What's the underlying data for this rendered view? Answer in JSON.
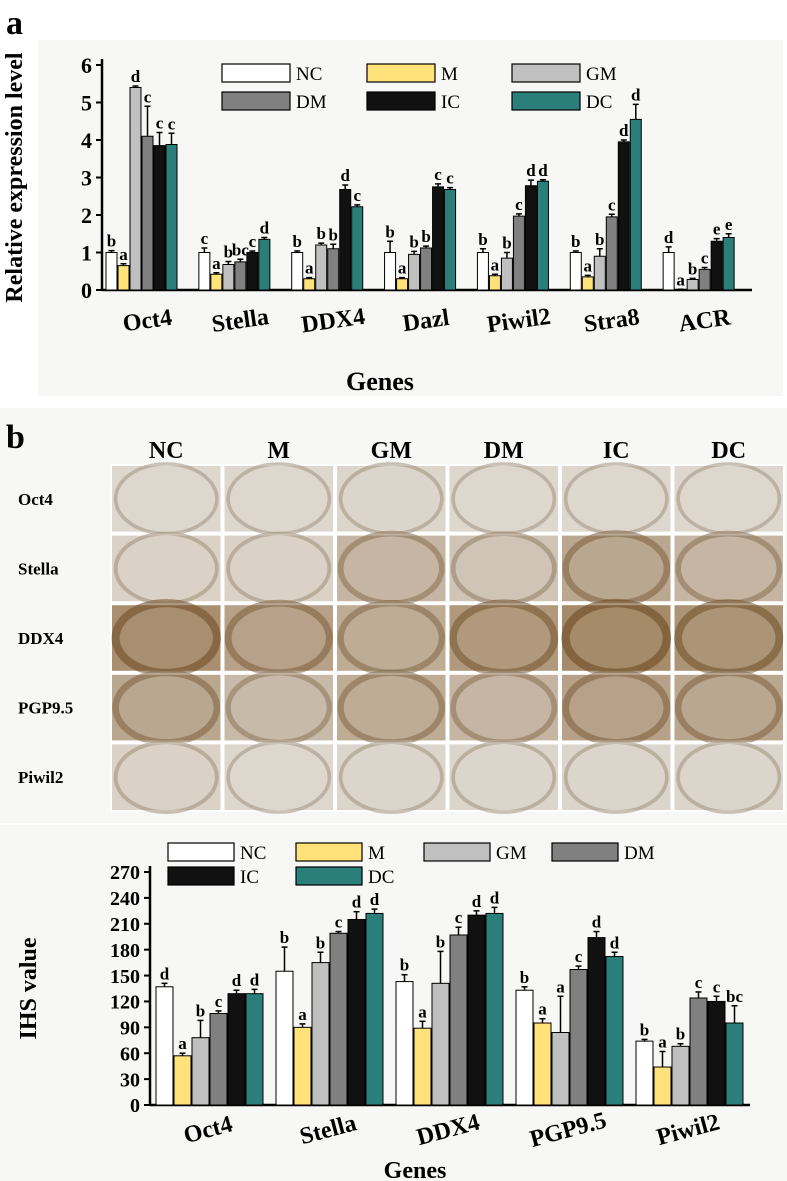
{
  "panel_a": {
    "panel_label": "a",
    "chart_data": {
      "type": "bar",
      "title": "",
      "xlabel": "Genes",
      "ylabel": "Relative expression level",
      "ylim": [
        0,
        6
      ],
      "yticks": [
        "0",
        "1",
        "2",
        "3",
        "4",
        "5",
        "6"
      ],
      "categories": [
        "Oct4",
        "Stella",
        "DDX4",
        "Dazl",
        "Piwil2",
        "Stra8",
        "ACR"
      ],
      "legend_position": "top-center",
      "series": [
        {
          "name": "NC",
          "color": "#ffffff",
          "values": [
            1.0,
            1.0,
            1.0,
            1.0,
            1.0,
            1.0,
            1.0
          ],
          "errors": [
            0.05,
            0.12,
            0.04,
            0.3,
            0.1,
            0.04,
            0.15
          ],
          "letters": [
            "b",
            "c",
            "b",
            "b",
            "b",
            "b",
            "d"
          ]
        },
        {
          "name": "M",
          "color": "#ffe37a",
          "values": [
            0.65,
            0.42,
            0.3,
            0.3,
            0.38,
            0.35,
            0.0
          ],
          "errors": [
            0.05,
            0.04,
            0.03,
            0.03,
            0.04,
            0.04,
            0.02
          ],
          "letters": [
            "a",
            "a",
            "a",
            "a",
            "a",
            "a",
            "a"
          ]
        },
        {
          "name": "GM",
          "color": "#c0c0c0",
          "values": [
            5.4,
            0.68,
            1.2,
            0.95,
            0.85,
            0.9,
            0.28
          ],
          "errors": [
            0.04,
            0.08,
            0.05,
            0.08,
            0.15,
            0.2,
            0.03
          ],
          "letters": [
            "d",
            "b",
            "b",
            "b",
            "b",
            "b",
            "b"
          ]
        },
        {
          "name": "DM",
          "color": "#808080",
          "values": [
            4.1,
            0.75,
            1.1,
            1.12,
            1.97,
            1.95,
            0.55
          ],
          "errors": [
            0.8,
            0.07,
            0.12,
            0.05,
            0.06,
            0.07,
            0.05
          ],
          "letters": [
            "c",
            "bc",
            "b",
            "b",
            "c",
            "c",
            "c"
          ]
        },
        {
          "name": "IC",
          "color": "#111111",
          "values": [
            3.85,
            1.0,
            2.68,
            2.75,
            2.78,
            3.95,
            1.3
          ],
          "errors": [
            0.35,
            0.04,
            0.12,
            0.08,
            0.15,
            0.05,
            0.07
          ],
          "letters": [
            "c",
            "c",
            "d",
            "c",
            "d",
            "d",
            "e"
          ]
        },
        {
          "name": "DC",
          "color": "#2a7f7a",
          "values": [
            3.88,
            1.35,
            2.22,
            2.68,
            2.9,
            4.55,
            1.4
          ],
          "errors": [
            0.3,
            0.05,
            0.05,
            0.05,
            0.04,
            0.4,
            0.1
          ],
          "letters": [
            "c",
            "d",
            "c",
            "c",
            "d",
            "d",
            "e"
          ]
        }
      ]
    }
  },
  "panel_b": {
    "panel_label": "b",
    "grid": {
      "columns": [
        "NC",
        "M",
        "GM",
        "DM",
        "IC",
        "DC"
      ],
      "rows": [
        "Oct4",
        "Stella",
        "DDX4",
        "PGP9.5",
        "Piwil2"
      ],
      "intensity": [
        [
          0.1,
          0.1,
          0.12,
          0.1,
          0.1,
          0.1
        ],
        [
          0.15,
          0.15,
          0.45,
          0.3,
          0.6,
          0.45
        ],
        [
          0.85,
          0.65,
          0.55,
          0.75,
          0.9,
          0.8
        ],
        [
          0.6,
          0.4,
          0.55,
          0.45,
          0.65,
          0.6
        ],
        [
          0.15,
          0.1,
          0.12,
          0.12,
          0.12,
          0.12
        ]
      ]
    },
    "chart_data": {
      "type": "bar",
      "title": "",
      "xlabel": "Genes",
      "ylabel": "IHS value",
      "ylim": [
        0,
        270
      ],
      "yticks": [
        "0",
        "30",
        "60",
        "90",
        "120",
        "150",
        "180",
        "210",
        "240",
        "270"
      ],
      "categories": [
        "Oct4",
        "Stella",
        "DDX4",
        "PGP9.5",
        "Piwil2"
      ],
      "legend_position": "top-center",
      "series": [
        {
          "name": "NC",
          "color": "#ffffff",
          "values": [
            137,
            155,
            143,
            133,
            74
          ],
          "errors": [
            4,
            28,
            8,
            4,
            2
          ],
          "letters": [
            "d",
            "b",
            "b",
            "b",
            "b"
          ]
        },
        {
          "name": "M",
          "color": "#ffe37a",
          "values": [
            57,
            90,
            89,
            95,
            44
          ],
          "errors": [
            3,
            4,
            8,
            5,
            18
          ],
          "letters": [
            "a",
            "a",
            "a",
            "a",
            "a"
          ]
        },
        {
          "name": "GM",
          "color": "#c0c0c0",
          "values": [
            78,
            165,
            141,
            84,
            68
          ],
          "errors": [
            20,
            12,
            37,
            42,
            3
          ],
          "letters": [
            "b",
            "b",
            "b",
            "a",
            "b"
          ]
        },
        {
          "name": "DM",
          "color": "#808080",
          "values": [
            106,
            199,
            197,
            157,
            124
          ],
          "errors": [
            3,
            2,
            9,
            4,
            7
          ],
          "letters": [
            "c",
            "c",
            "c",
            "c",
            "c"
          ]
        },
        {
          "name": "IC",
          "color": "#111111",
          "values": [
            129,
            215,
            220,
            194,
            120
          ],
          "errors": [
            4,
            9,
            5,
            7,
            6
          ],
          "letters": [
            "d",
            "d",
            "d",
            "d",
            "c"
          ]
        },
        {
          "name": "DC",
          "color": "#2a7f7a",
          "values": [
            129,
            222,
            222,
            172,
            95
          ],
          "errors": [
            5,
            5,
            7,
            5,
            20
          ],
          "letters": [
            "d",
            "d",
            "d",
            "d",
            "bc"
          ]
        }
      ]
    }
  }
}
